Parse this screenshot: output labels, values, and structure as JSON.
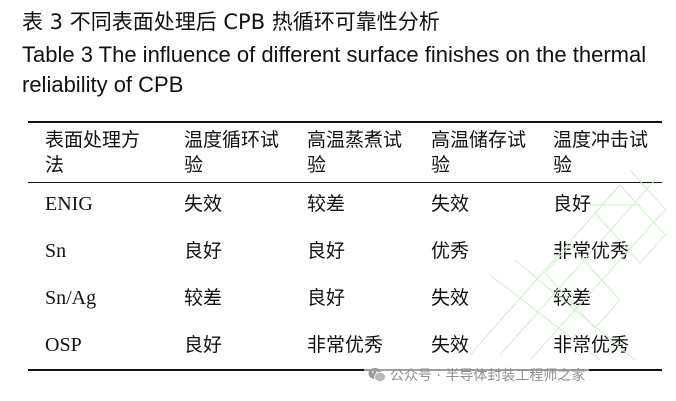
{
  "caption": {
    "chinese": "表 3  不同表面处理后 CPB 热循环可靠性分析",
    "english": "Table 3 The influence of different surface finishes on the thermal reliability of CPB"
  },
  "table": {
    "headers": [
      "表面处理方法",
      "温度循环试验",
      "高温蒸煮试验",
      "高温储存试验",
      "温度冲击试验"
    ],
    "rows": [
      [
        "ENIG",
        "失效",
        "较差",
        "失效",
        "良好"
      ],
      [
        "Sn",
        "良好",
        "良好",
        "优秀",
        "非常优秀"
      ],
      [
        "Sn/Ag",
        "较差",
        "良好",
        "失效",
        "较差"
      ],
      [
        "OSP",
        "良好",
        "非常优秀",
        "失效",
        "非常优秀"
      ]
    ]
  },
  "watermark": {
    "text": "公众号 · 半导体封装工程师之家",
    "icon": "wechat-icon",
    "color": "#8e8e8e",
    "mesh_color": "#cfeecb"
  }
}
